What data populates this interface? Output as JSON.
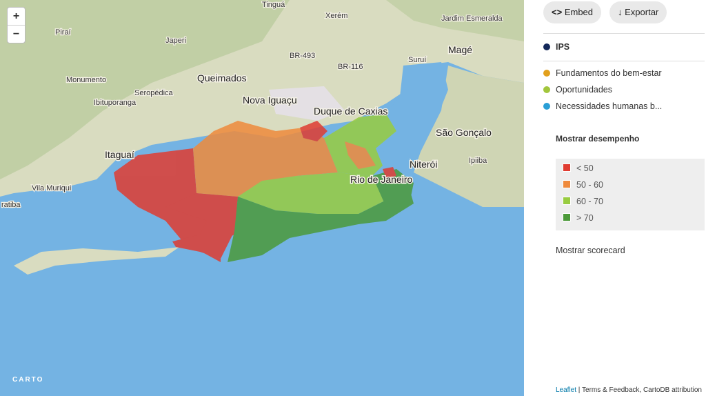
{
  "zoom": {
    "in": "+",
    "out": "−"
  },
  "map_labels": {
    "tingua": "Tinguá",
    "xerem": "Xerém",
    "jardim_esmeralda": "Jardim Esmeralda",
    "pirai": "Piraí",
    "japeri": "Japeri",
    "mage": "Magé",
    "br493": "BR-493",
    "br116": "BR-116",
    "surui": "Suruí",
    "monumento": "Monumento",
    "queimados": "Queimados",
    "seropedica": "Seropédica",
    "nova_iguacu": "Nova Iguaçu",
    "ibituporanga": "Ibituporanga",
    "duque_de_caxias": "Duque de Caxias",
    "sao_goncalo": "São Gonçalo",
    "itaguai": "Itaguaí",
    "niteroi": "Niterói",
    "ipiiba": "Ipiiba",
    "vila_muriqui": "Vila Muriqui",
    "ratiba": "ratiba",
    "rio": "Rio de Janeiro"
  },
  "carto": "CARTO",
  "attribution": {
    "leaflet": "Leaflet",
    "terms": "Terms & Feedback",
    "cartodb": "CartoDB attribution"
  },
  "buttons": {
    "embed": "Embed",
    "export": "Exportar"
  },
  "index": "IPS",
  "dimensions": [
    "Fundamentos do bem-estar",
    "Oportunidades",
    "Necessidades humanas b..."
  ],
  "performance": {
    "title": "Mostrar desempenho",
    "ranges": [
      "< 50",
      "50 - 60",
      "60 - 70",
      "> 70"
    ]
  },
  "scorecard": "Mostrar scorecard"
}
